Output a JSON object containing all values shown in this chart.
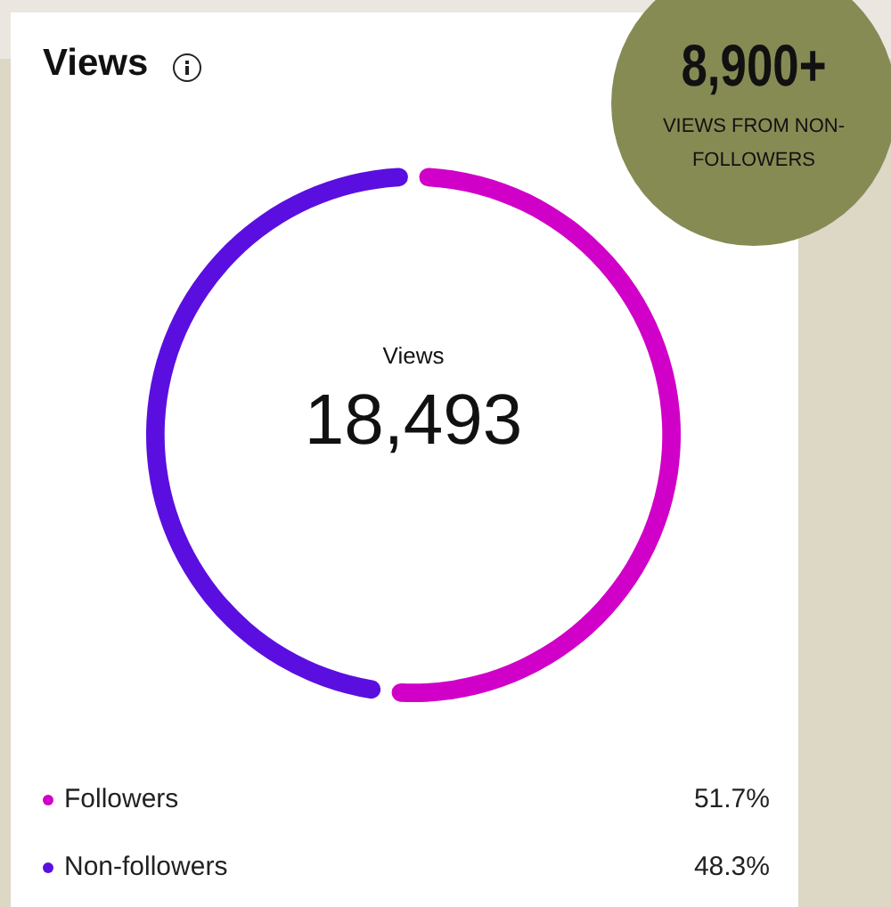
{
  "chart_data": {
    "type": "donut",
    "title": "Views",
    "categories": [
      "Followers",
      "Non-followers"
    ],
    "values": [
      51.7,
      48.3
    ],
    "colors": [
      "#d100c8",
      "#5a0fe0"
    ],
    "value_labels": [
      "51.7%",
      "48.3%"
    ],
    "legend": "bottom",
    "annotations": [
      "Views",
      "18,493",
      "8,900+",
      "VIEWS FROM NON-FOLLOWERS"
    ]
  }
}
